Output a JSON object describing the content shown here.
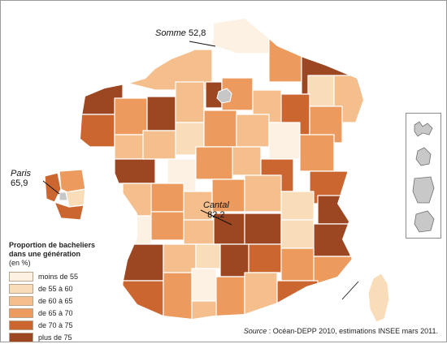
{
  "callouts": {
    "somme": {
      "name": "Somme",
      "value": "52,8"
    },
    "paris": {
      "name": "Paris",
      "value": "65,9"
    },
    "cantal": {
      "name": "Cantal",
      "value": "82,2"
    }
  },
  "legend": {
    "title_line1": "Proportion de bacheliers",
    "title_line2": "dans une génération",
    "unit": "(en %)",
    "classes": [
      {
        "label": "moins de 55",
        "color": "#fdf1e3"
      },
      {
        "label": "de 55 à 60",
        "color": "#f9dcb8"
      },
      {
        "label": "de 60 à 65",
        "color": "#f4bf8c"
      },
      {
        "label": "de 65 à 70",
        "color": "#ec9a5d"
      },
      {
        "label": "de 70 à 75",
        "color": "#cc6630"
      },
      {
        "label": "plus de 75",
        "color": "#9c4721"
      }
    ]
  },
  "source": {
    "label": "Source",
    "text": " : Océan-DEPP 2010, estimations INSEE mars 2011."
  },
  "colors": {
    "paris_fill": "#c7c7c7",
    "dom_fill": "#c8c8c8",
    "callout_line": "#111111"
  }
}
